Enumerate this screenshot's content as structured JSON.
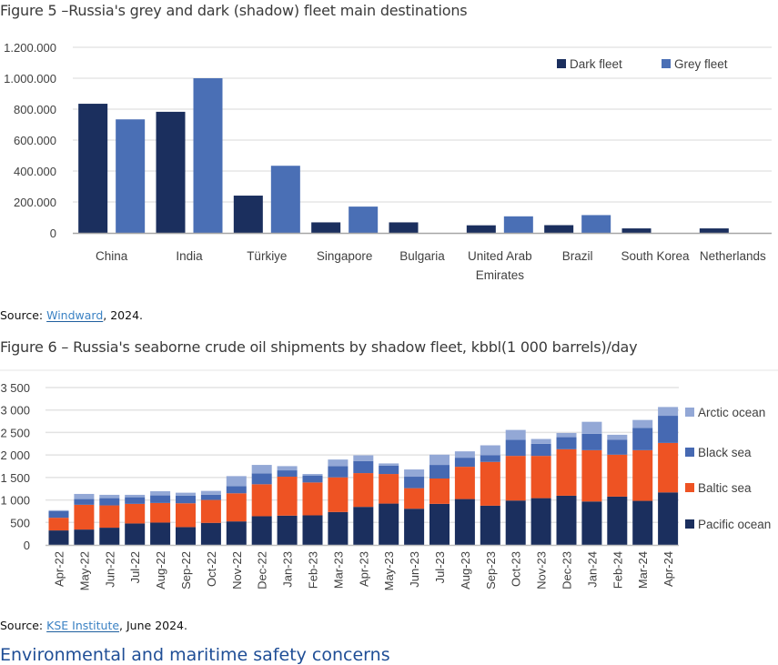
{
  "figures": {
    "fig5_title": "Figure 5 –Russia's grey and dark (shadow) fleet main destinations",
    "fig6_title": "Figure 6 – Russia's seaborne crude oil shipments by shadow fleet, kbbl(1 000 barrels)/day",
    "fig5_source": {
      "prefix": "Source: ",
      "link": "Windward",
      "suffix": ", 2024."
    },
    "fig6_source": {
      "prefix": "Source: ",
      "link": "KSE Institute",
      "suffix": ", June 2024."
    },
    "next_section_heading": "Environmental and maritime safety concerns"
  },
  "chart_data": [
    {
      "type": "bar",
      "title": "Figure 5 –Russia's grey and dark (shadow) fleet main destinations",
      "xlabel": "",
      "ylabel": "",
      "ylim": [
        0,
        1200000
      ],
      "yticks": [
        0,
        200000,
        400000,
        600000,
        800000,
        1000000,
        1200000
      ],
      "ytick_labels": [
        "0",
        "200.000",
        "400.000",
        "600.000",
        "800.000",
        "1.000.000",
        "1.200.000"
      ],
      "grid": true,
      "legend_position": "top-right",
      "categories": [
        "China",
        "India",
        "Türkiye",
        "Singapore",
        "Bulgaria",
        "United Arab Emirates",
        "Brazil",
        "South Korea",
        "Netherlands"
      ],
      "category_label_lines": [
        [
          "China"
        ],
        [
          "India"
        ],
        [
          "Türkiye"
        ],
        [
          "Singapore"
        ],
        [
          "Bulgaria"
        ],
        [
          "United Arab",
          "Emirates"
        ],
        [
          "Brazil"
        ],
        [
          "South Korea"
        ],
        [
          "Netherlands"
        ]
      ],
      "series": [
        {
          "name": "Dark fleet",
          "color": "#1b2f5e",
          "values": [
            835000,
            783000,
            241000,
            68000,
            68000,
            49000,
            50000,
            29000,
            29000
          ]
        },
        {
          "name": "Grey fleet",
          "color": "#4a6fb5",
          "values": [
            734000,
            1000000,
            434000,
            170000,
            0,
            107000,
            115000,
            0,
            0
          ]
        }
      ]
    },
    {
      "type": "bar",
      "stacked": true,
      "title": "Figure 6 – Russia's seaborne crude oil shipments by shadow fleet, kbbl(1 000 barrels)/day",
      "xlabel": "",
      "ylabel": "",
      "ylim": [
        0,
        3500
      ],
      "yticks": [
        0,
        500,
        1000,
        1500,
        2000,
        2500,
        3000,
        3500
      ],
      "ytick_labels": [
        "0",
        "500",
        "1 000",
        "1 500",
        "2 000",
        "2 500",
        "3 000",
        "3 500"
      ],
      "grid": true,
      "legend_position": "right",
      "legend_order": [
        "Arctic ocean",
        "Black sea",
        "Baltic sea",
        "Pacific ocean"
      ],
      "categories": [
        "Apr-22",
        "May-22",
        "Jun-22",
        "Jul-22",
        "Aug-22",
        "Sep-22",
        "Oct-22",
        "Nov-22",
        "Dec-22",
        "Jan-23",
        "Feb-23",
        "Mar-23",
        "Apr-23",
        "May-23",
        "Jun-23",
        "Jul-23",
        "Aug-23",
        "Sep-23",
        "Oct-23",
        "Nov-23",
        "Dec-23",
        "Jan-24",
        "Feb-24",
        "Mar-24",
        "Apr-24"
      ],
      "series": [
        {
          "name": "Pacific ocean",
          "color": "#1b2f5e",
          "values": [
            322,
            342,
            383,
            477,
            497,
            396,
            490,
            523,
            638,
            651,
            658,
            732,
            846,
            919,
            805,
            913,
            1020,
            872,
            987,
            1040,
            1094,
            966,
            1074,
            980,
            1168
          ]
        },
        {
          "name": "Baltic sea",
          "color": "#ee5323",
          "values": [
            282,
            551,
            496,
            436,
            436,
            530,
            510,
            625,
            711,
            866,
            731,
            771,
            751,
            658,
            457,
            564,
            718,
            974,
            993,
            940,
            1034,
            1141,
            933,
            1127,
            1100
          ]
        },
        {
          "name": "Black sea",
          "color": "#4669b2",
          "values": [
            148,
            127,
            161,
            147,
            168,
            168,
            114,
            161,
            242,
            141,
            155,
            249,
            269,
            188,
            255,
            302,
            202,
            147,
            356,
            268,
            268,
            363,
            335,
            497,
            604
          ]
        },
        {
          "name": "Arctic ocean",
          "color": "#93a8d6",
          "values": [
            20,
            114,
            74,
            54,
            94,
            67,
            87,
            221,
            188,
            94,
            33,
            147,
            127,
            47,
            161,
            228,
            141,
            222,
            221,
            108,
            94,
            268,
            108,
            175,
            195
          ]
        }
      ]
    }
  ]
}
